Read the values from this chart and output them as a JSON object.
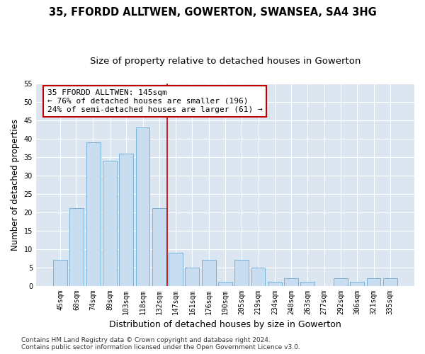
{
  "title": "35, FFORDD ALLTWEN, GOWERTON, SWANSEA, SA4 3HG",
  "subtitle": "Size of property relative to detached houses in Gowerton",
  "xlabel": "Distribution of detached houses by size in Gowerton",
  "ylabel": "Number of detached properties",
  "categories": [
    "45sqm",
    "60sqm",
    "74sqm",
    "89sqm",
    "103sqm",
    "118sqm",
    "132sqm",
    "147sqm",
    "161sqm",
    "176sqm",
    "190sqm",
    "205sqm",
    "219sqm",
    "234sqm",
    "248sqm",
    "263sqm",
    "277sqm",
    "292sqm",
    "306sqm",
    "321sqm",
    "335sqm"
  ],
  "values": [
    7,
    21,
    39,
    34,
    36,
    43,
    21,
    9,
    5,
    7,
    1,
    7,
    5,
    1,
    2,
    1,
    0,
    2,
    1,
    2,
    2
  ],
  "bar_color": "#c9ddf0",
  "bar_edge_color": "#6aaad4",
  "vline_x_index": 6.5,
  "vline_color": "#c00000",
  "annotation_line1": "35 FFORDD ALLTWEN: 145sqm",
  "annotation_line2": "← 76% of detached houses are smaller (196)",
  "annotation_line3": "24% of semi-detached houses are larger (61) →",
  "annotation_box_color": "#c00000",
  "ylim": [
    0,
    55
  ],
  "yticks": [
    0,
    5,
    10,
    15,
    20,
    25,
    30,
    35,
    40,
    45,
    50,
    55
  ],
  "background_color": "#dce6f1",
  "grid_color": "#ffffff",
  "footer_line1": "Contains HM Land Registry data © Crown copyright and database right 2024.",
  "footer_line2": "Contains public sector information licensed under the Open Government Licence v3.0.",
  "title_fontsize": 10.5,
  "subtitle_fontsize": 9.5,
  "tick_fontsize": 7,
  "ylabel_fontsize": 8.5,
  "xlabel_fontsize": 9,
  "annotation_fontsize": 8,
  "footer_fontsize": 6.5
}
